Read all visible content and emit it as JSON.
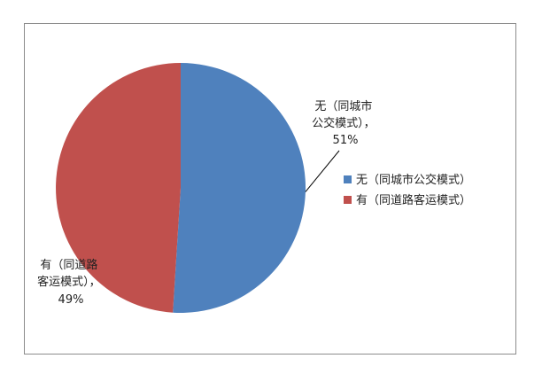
{
  "chart_data": {
    "type": "pie",
    "title": "",
    "series": [
      {
        "values": [
          51,
          49
        ]
      }
    ],
    "slices": [
      {
        "legend": "无（同城市公交模式）",
        "label_lines": [
          "无（同城市",
          "公交模式），"
        ],
        "percent_label": "51%",
        "value": 51,
        "color": "#4F81BD"
      },
      {
        "legend": "有（同道路客运模式）",
        "label_lines": [
          "有（同道路",
          "客运模式），"
        ],
        "percent_label": "49%",
        "value": 49,
        "color": "#C0504D"
      }
    ],
    "legend_position": "right",
    "start_angle_deg": 0,
    "direction": "clockwise"
  }
}
